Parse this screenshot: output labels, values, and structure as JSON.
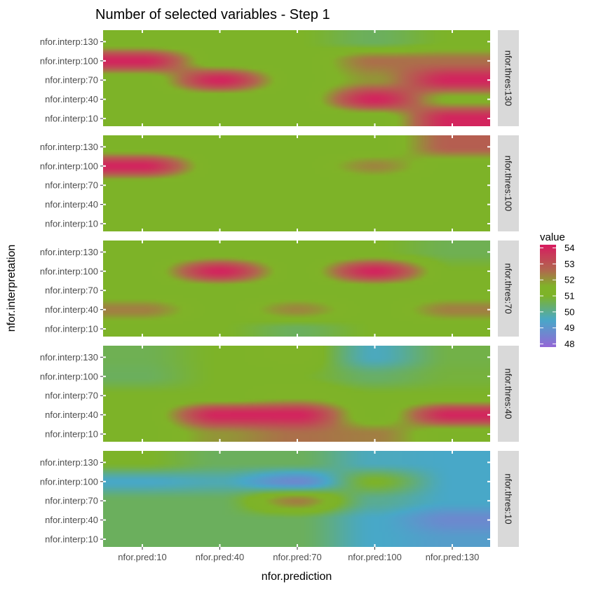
{
  "chart_data": {
    "type": "heatmap",
    "title": "Number of selected variables - Step 1",
    "xlabel": "nfor.prediction",
    "ylabel": "nfor.interpretation",
    "x_categories": [
      "nfor.pred:10",
      "nfor.pred:40",
      "nfor.pred:70",
      "nfor.pred:100",
      "nfor.pred:130"
    ],
    "y_categories": [
      "nfor.interp:10",
      "nfor.interp:40",
      "nfor.interp:70",
      "nfor.interp:100",
      "nfor.interp:130"
    ],
    "legend": {
      "title": "value",
      "position": "right",
      "min": 47.8,
      "max": 54.2,
      "breaks": [
        54,
        53,
        52,
        51,
        50,
        49,
        48
      ],
      "color_stops": [
        {
          "value": 47.8,
          "color": "#9467d6"
        },
        {
          "value": 49.5,
          "color": "#48a8c8"
        },
        {
          "value": 51.0,
          "color": "#7db328"
        },
        {
          "value": 51.6,
          "color": "#80b328"
        },
        {
          "value": 52.6,
          "color": "#b0684e"
        },
        {
          "value": 54.2,
          "color": "#d81b60"
        }
      ]
    },
    "panels": [
      {
        "strip": "nfor.thres:130",
        "values": [
          [
            51,
            51,
            51,
            51,
            54
          ],
          [
            51,
            51,
            51,
            54,
            51.5
          ],
          [
            51,
            54,
            51,
            52,
            54
          ],
          [
            54,
            51,
            51,
            52.5,
            52.5
          ],
          [
            51,
            51,
            51,
            50.5,
            51
          ]
        ]
      },
      {
        "strip": "nfor.thres:100",
        "values": [
          [
            51,
            51,
            51,
            51,
            51
          ],
          [
            51,
            51,
            51,
            51,
            51
          ],
          [
            51,
            51,
            51,
            51,
            51
          ],
          [
            54,
            51,
            51,
            52.2,
            51
          ],
          [
            51,
            51,
            51,
            51,
            52.8
          ]
        ]
      },
      {
        "strip": "nfor.thres:70",
        "values": [
          [
            51,
            51,
            50.5,
            51,
            51
          ],
          [
            52.3,
            51,
            52.2,
            51,
            52.3
          ],
          [
            51,
            51,
            51,
            51,
            51
          ],
          [
            51,
            54,
            51,
            54,
            51
          ],
          [
            51,
            51,
            51,
            51,
            50.6
          ]
        ]
      },
      {
        "strip": "nfor.thres:40",
        "values": [
          [
            51,
            52,
            52.5,
            52.3,
            51
          ],
          [
            51,
            54,
            54,
            51,
            54
          ],
          [
            51,
            51,
            51.5,
            51,
            51
          ],
          [
            50.5,
            51,
            51,
            50.4,
            50.8
          ],
          [
            50.6,
            51,
            51.5,
            49.6,
            50.7
          ]
        ]
      },
      {
        "strip": "nfor.thres:10",
        "values": [
          [
            50.5,
            50.5,
            50.5,
            49.5,
            49.2
          ],
          [
            50.5,
            50.5,
            50.5,
            49.5,
            48.7
          ],
          [
            50.5,
            50.5,
            52.3,
            50,
            49.5
          ],
          [
            49.5,
            49.7,
            48.7,
            51,
            49.5
          ],
          [
            51,
            50.5,
            50.5,
            49.6,
            49.5
          ]
        ]
      }
    ]
  }
}
